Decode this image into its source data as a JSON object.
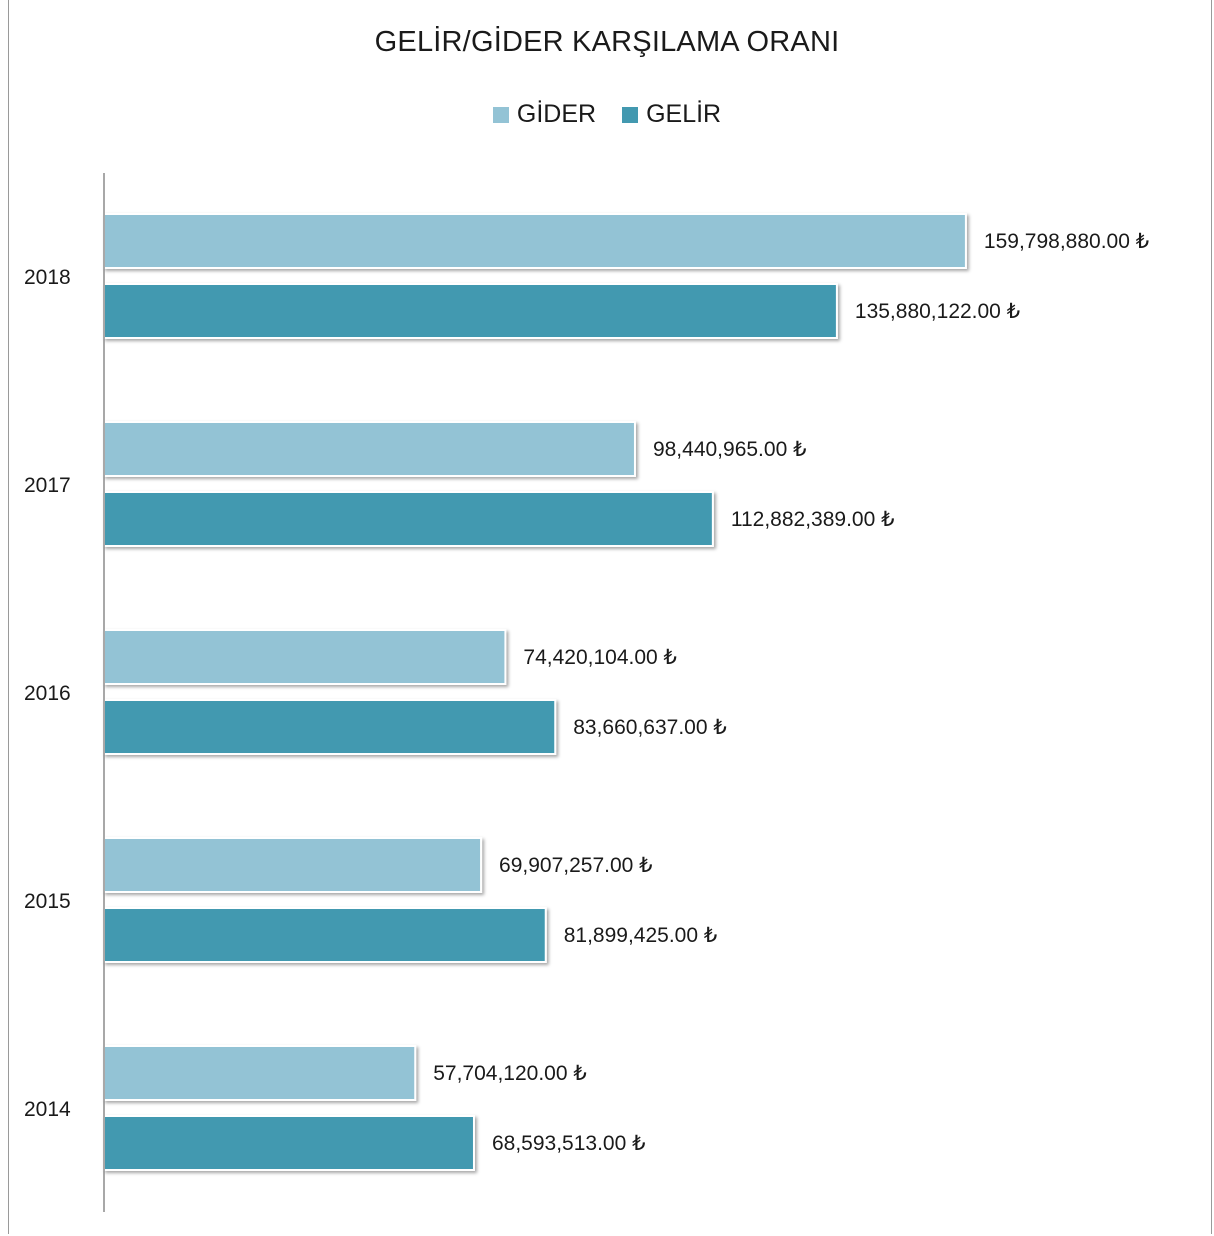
{
  "chart_data": {
    "type": "bar",
    "orientation": "horizontal",
    "title": "GELİR/GİDER KARŞILAMA ORANI",
    "categories": [
      "2018",
      "2017",
      "2016",
      "2015",
      "2014"
    ],
    "series": [
      {
        "name": "GİDER",
        "color": "#93c3d5",
        "values": [
          159798880,
          98440965,
          74420104,
          69907257,
          57704120
        ],
        "labels": [
          "159,798,880.00 ₺",
          "98,440,965.00 ₺",
          "74,420,104.00 ₺",
          "69,907,257.00 ₺",
          "57,704,120.00 ₺"
        ]
      },
      {
        "name": "GELİR",
        "color": "#4399b0",
        "values": [
          135880122,
          112882389,
          83660637,
          81899425,
          68593513
        ],
        "labels": [
          "135,880,122.00 ₺",
          "112,882,389.00 ₺",
          "83,660,637.00 ₺",
          "81,899,425.00 ₺",
          "68,593,513.00 ₺"
        ]
      }
    ],
    "xlim": [
      0,
      160000000
    ],
    "legend_position": "top",
    "grid": false
  }
}
